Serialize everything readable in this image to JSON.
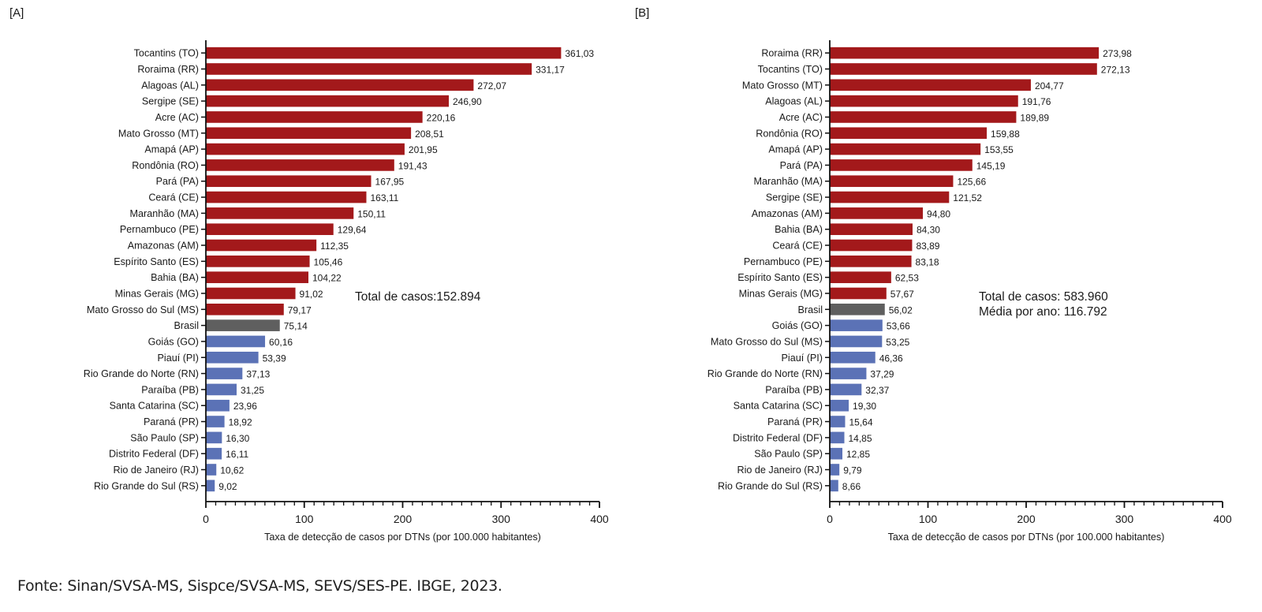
{
  "panel_labels": [
    "[A]",
    "[B]"
  ],
  "source": "Fonte: Sinan/SVSA-MS, Sispce/SVSA-MS, SEVS/SES-PE. IBGE, 2023.",
  "colors": {
    "above": "#a3191b",
    "brasil": "#5f5f5f",
    "below": "#5b72b6",
    "axis": "#111111"
  },
  "chart_data": [
    {
      "type": "bar",
      "orientation": "horizontal",
      "panel": "[A]",
      "title": "",
      "xlabel": "Taxa de detecção de casos por DTNs (por 100.000 habitantes)",
      "ylabel": "",
      "xlim": [
        0,
        400
      ],
      "xticks": [
        0,
        100,
        200,
        300,
        400
      ],
      "minor_tick_step": 10,
      "grid": false,
      "annotations": [
        "Total de casos:152.894"
      ],
      "categories": [
        "Tocantins (TO)",
        "Roraima (RR)",
        "Alagoas (AL)",
        "Sergipe (SE)",
        "Acre (AC)",
        "Mato Grosso (MT)",
        "Amapá (AP)",
        "Rondônia (RO)",
        "Pará (PA)",
        "Ceará (CE)",
        "Maranhão (MA)",
        "Pernambuco (PE)",
        "Amazonas (AM)",
        "Espírito Santo (ES)",
        "Bahia (BA)",
        "Minas Gerais (MG)",
        "Mato Grosso do Sul (MS)",
        "Brasil",
        "Goiás (GO)",
        "Piauí (PI)",
        "Rio Grande do Norte (RN)",
        "Paraíba (PB)",
        "Santa Catarina (SC)",
        "Paraná (PR)",
        "São Paulo (SP)",
        "Distrito Federal (DF)",
        "Rio de Janeiro (RJ)",
        "Rio Grande do Sul (RS)"
      ],
      "values": [
        361.03,
        331.17,
        272.07,
        246.9,
        220.16,
        208.51,
        201.95,
        191.43,
        167.95,
        163.11,
        150.11,
        129.64,
        112.35,
        105.46,
        104.22,
        91.02,
        79.17,
        75.14,
        60.16,
        53.39,
        37.13,
        31.25,
        23.96,
        18.92,
        16.3,
        16.11,
        10.62,
        9.02
      ],
      "value_labels": [
        "361,03",
        "331,17",
        "272,07",
        "246,90",
        "220,16",
        "208,51",
        "201,95",
        "191,43",
        "167,95",
        "163,11",
        "150,11",
        "129,64",
        "112,35",
        "105,46",
        "104,22",
        "91,02",
        "79,17",
        "75,14",
        "60,16",
        "53,39",
        "37,13",
        "31,25",
        "23,96",
        "18,92",
        "16,30",
        "16,11",
        "10,62",
        "9,02"
      ],
      "groups": [
        "above",
        "above",
        "above",
        "above",
        "above",
        "above",
        "above",
        "above",
        "above",
        "above",
        "above",
        "above",
        "above",
        "above",
        "above",
        "above",
        "above",
        "brasil",
        "below",
        "below",
        "below",
        "below",
        "below",
        "below",
        "below",
        "below",
        "below",
        "below"
      ]
    },
    {
      "type": "bar",
      "orientation": "horizontal",
      "panel": "[B]",
      "title": "",
      "xlabel": "Taxa de detecção de casos por DTNs (por 100.000 habitantes)",
      "ylabel": "",
      "xlim": [
        0,
        400
      ],
      "xticks": [
        0,
        100,
        200,
        300,
        400
      ],
      "minor_tick_step": 10,
      "grid": false,
      "annotations": [
        "Total de casos: 583.960",
        "Média por ano: 116.792"
      ],
      "categories": [
        "Roraima (RR)",
        "Tocantins (TO)",
        "Mato Grosso (MT)",
        "Alagoas (AL)",
        "Acre (AC)",
        "Rondônia (RO)",
        "Amapá (AP)",
        "Pará (PA)",
        "Maranhão (MA)",
        "Sergipe (SE)",
        "Amazonas (AM)",
        "Bahia (BA)",
        "Ceará (CE)",
        "Pernambuco (PE)",
        "Espírito Santo (ES)",
        "Minas Gerais (MG)",
        "Brasil",
        "Goiás (GO)",
        "Mato Grosso do Sul (MS)",
        "Piauí (PI)",
        "Rio Grande do Norte (RN)",
        "Paraíba (PB)",
        "Santa Catarina (SC)",
        "Paraná (PR)",
        "Distrito Federal (DF)",
        "São Paulo (SP)",
        "Rio de Janeiro (RJ)",
        "Rio Grande do Sul (RS)"
      ],
      "values": [
        273.98,
        272.13,
        204.77,
        191.76,
        189.89,
        159.88,
        153.55,
        145.19,
        125.66,
        121.52,
        94.8,
        84.3,
        83.89,
        83.18,
        62.53,
        57.67,
        56.02,
        53.66,
        53.25,
        46.36,
        37.29,
        32.37,
        19.3,
        15.64,
        14.85,
        12.85,
        9.79,
        8.66
      ],
      "value_labels": [
        "273,98",
        "272,13",
        "204,77",
        "191,76",
        "189,89",
        "159,88",
        "153,55",
        "145,19",
        "125,66",
        "121,52",
        "94,80",
        "84,30",
        "83,89",
        "83,18",
        "62,53",
        "57,67",
        "56,02",
        "53,66",
        "53,25",
        "46,36",
        "37,29",
        "32,37",
        "19,30",
        "15,64",
        "14,85",
        "12,85",
        "9,79",
        "8,66"
      ],
      "groups": [
        "above",
        "above",
        "above",
        "above",
        "above",
        "above",
        "above",
        "above",
        "above",
        "above",
        "above",
        "above",
        "above",
        "above",
        "above",
        "above",
        "brasil",
        "below",
        "below",
        "below",
        "below",
        "below",
        "below",
        "below",
        "below",
        "below",
        "below",
        "below"
      ]
    }
  ]
}
